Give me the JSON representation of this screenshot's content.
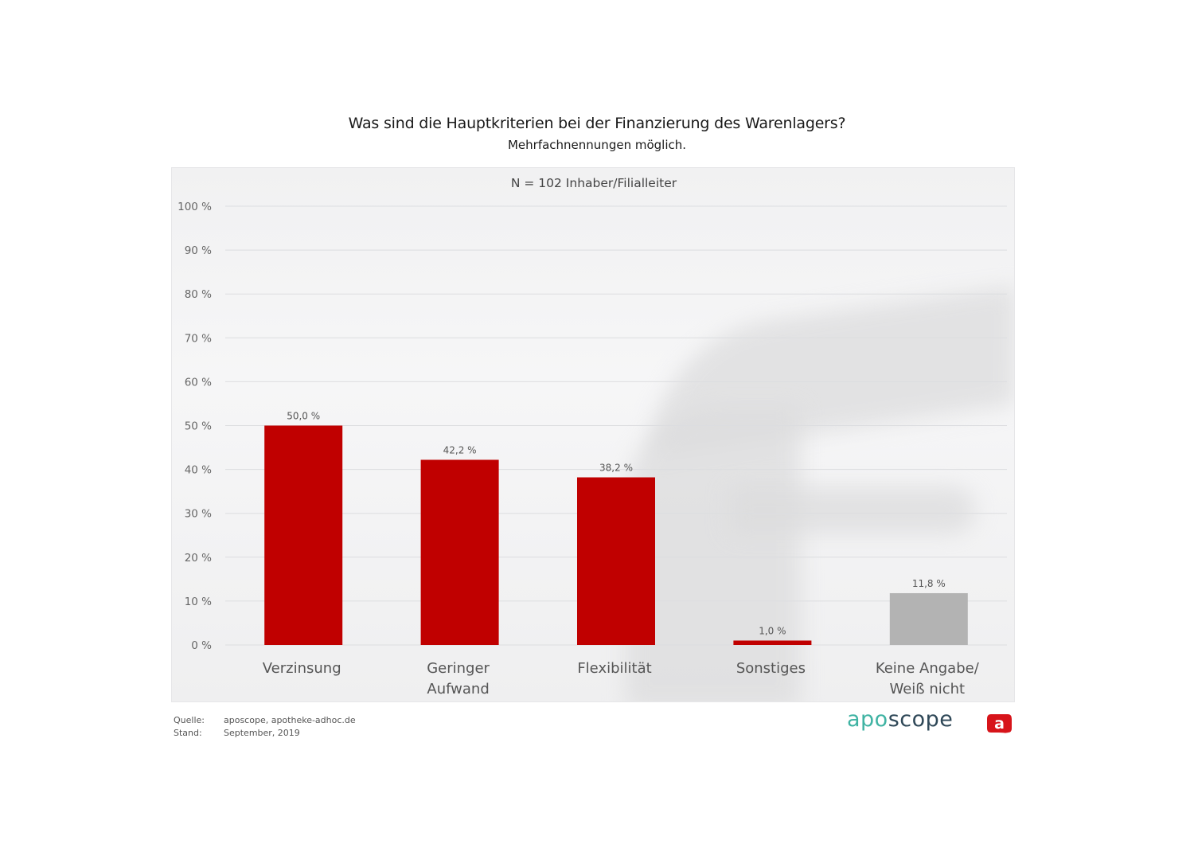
{
  "header": {
    "title": "Was sind die Hauptkriterien bei der Finanzierung des Warenlagers?",
    "subtitle": "Mehrfachnennungen möglich."
  },
  "chart_data": {
    "type": "bar",
    "title": "Was sind die Hauptkriterien bei der Finanzierung des Warenlagers?",
    "subtitle": "Mehrfachnennungen möglich.",
    "annotation": "N = 102 Inhaber/Filialleiter",
    "xlabel": "",
    "ylabel": "",
    "ylim": [
      0,
      100
    ],
    "y_ticks": [
      0,
      10,
      20,
      30,
      40,
      50,
      60,
      70,
      80,
      90,
      100
    ],
    "y_tick_labels": [
      "0 %",
      "10 %",
      "20 %",
      "30 %",
      "40 %",
      "50 %",
      "60 %",
      "70 %",
      "80 %",
      "90 %",
      "100 %"
    ],
    "grid": true,
    "legend": "none",
    "categories": [
      [
        "Verzinsung"
      ],
      [
        "Geringer",
        "Aufwand"
      ],
      [
        "Flexibilität"
      ],
      [
        "Sonstiges"
      ],
      [
        "Keine Angabe/",
        "Weiß nicht"
      ]
    ],
    "values": [
      50.0,
      42.2,
      38.2,
      1.0,
      11.8
    ],
    "value_labels": [
      "50,0 %",
      "42,2 %",
      "38,2 %",
      "1,0 %",
      "11,8 %"
    ],
    "bar_colors": [
      "#c00000",
      "#c00000",
      "#c00000",
      "#c00000",
      "#b3b3b3"
    ]
  },
  "footer": {
    "source_label": "Quelle:",
    "source_value": "aposcope, apotheke-adhoc.de",
    "date_label": "Stand:",
    "date_value": "September, 2019"
  },
  "logo": {
    "part1": "apo",
    "part2": "scope",
    "badge_letter": "a",
    "color_apo": "#3fb3a3",
    "color_scope": "#2f4858",
    "color_badge": "#d7141a"
  }
}
